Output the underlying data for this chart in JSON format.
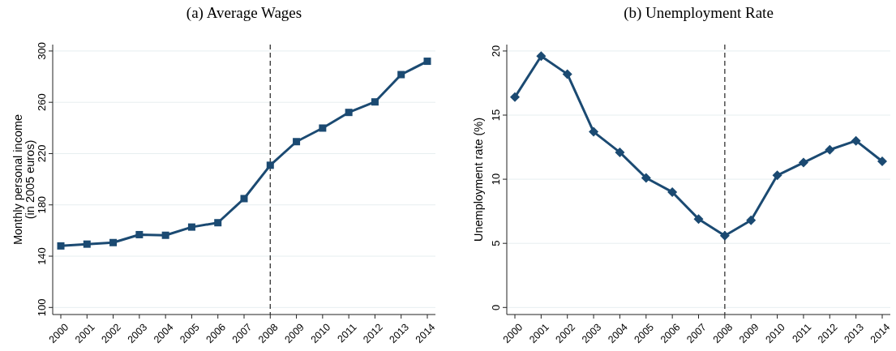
{
  "chart_data": [
    {
      "type": "line",
      "title": "(a) Average Wages",
      "ylabel": "Monthly personal income\n(in 2005 euros)",
      "categories": [
        "2000",
        "2001",
        "2002",
        "2003",
        "2004",
        "2005",
        "2006",
        "2007",
        "2008",
        "2009",
        "2010",
        "2011",
        "2012",
        "2013",
        "2014"
      ],
      "series": [
        {
          "color": "#1b4a72",
          "values": [
            148,
            149.4,
            150.6,
            156.8,
            156.3,
            162.7,
            166.1,
            184.9,
            210.9,
            229.3,
            239.9,
            252.1,
            260.3,
            281.6,
            292
          ]
        }
      ],
      "ylim": [
        94.5,
        305
      ],
      "yticks": [
        100,
        140,
        180,
        220,
        260,
        300
      ],
      "grid": "y",
      "marker": "square",
      "line_style": "solid",
      "ref_lines": [
        {
          "axis": "x",
          "value": "2008",
          "line_style": "dashed",
          "color": "#333333"
        }
      ]
    },
    {
      "type": "line",
      "title": "(b) Unemployment Rate",
      "ylabel": "Unemployment rate (%)",
      "categories": [
        "2000",
        "2001",
        "2002",
        "2003",
        "2004",
        "2005",
        "2006",
        "2007",
        "2008",
        "2009",
        "2010",
        "2011",
        "2012",
        "2013",
        "2014"
      ],
      "series": [
        {
          "color": "#1b4a72",
          "values": [
            16.4,
            19.6,
            18.2,
            13.7,
            12.1,
            10.1,
            9.0,
            6.9,
            5.6,
            6.8,
            10.3,
            11.3,
            12.3,
            13.0,
            11.4
          ]
        }
      ],
      "ylim": [
        -0.55,
        20.5
      ],
      "yticks": [
        0,
        5,
        10,
        15,
        20
      ],
      "grid": "y",
      "marker": "diamond",
      "line_style": "solid",
      "ref_lines": [
        {
          "axis": "x",
          "value": "2008",
          "line_style": "dashed",
          "color": "#333333"
        }
      ]
    }
  ]
}
